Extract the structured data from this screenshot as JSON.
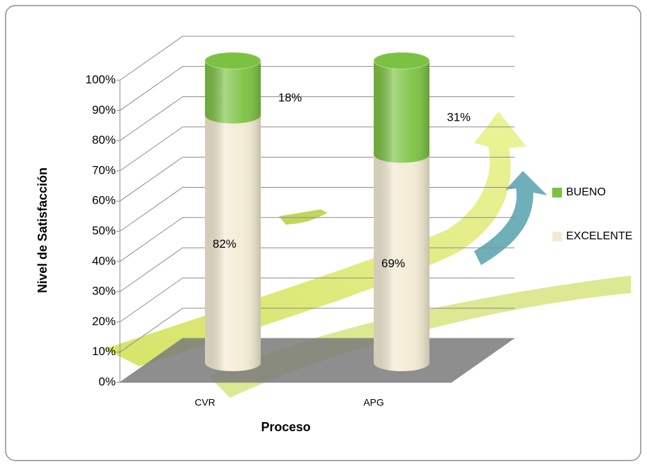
{
  "chart_data": {
    "type": "bar3d_cylinder_stacked",
    "x_label": "Proceso",
    "y_label": "Nivel de Satisfacción",
    "categories": [
      "CVR",
      "APG"
    ],
    "series": [
      {
        "name": "EXCELENTE",
        "color": "#f2ead2",
        "values": [
          82,
          69
        ],
        "value_labels": [
          "82%",
          "69%"
        ]
      },
      {
        "name": "BUENO",
        "color": "#7cc242",
        "values": [
          18,
          31
        ],
        "value_labels": [
          "18%",
          "31%"
        ]
      }
    ],
    "ylim": [
      0,
      100
    ],
    "yticks": [
      {
        "value": 0,
        "label": "0%"
      },
      {
        "value": 10,
        "label": "10%"
      },
      {
        "value": 20,
        "label": "20%"
      },
      {
        "value": 30,
        "label": "30%"
      },
      {
        "value": 40,
        "label": "40%"
      },
      {
        "value": 50,
        "label": "50%"
      },
      {
        "value": 60,
        "label": "60%"
      },
      {
        "value": 70,
        "label": "70%"
      },
      {
        "value": 80,
        "label": "80%"
      },
      {
        "value": 90,
        "label": "90%"
      },
      {
        "value": 100,
        "label": "100%"
      }
    ],
    "grid": true,
    "stacked": true,
    "legend": "right"
  }
}
